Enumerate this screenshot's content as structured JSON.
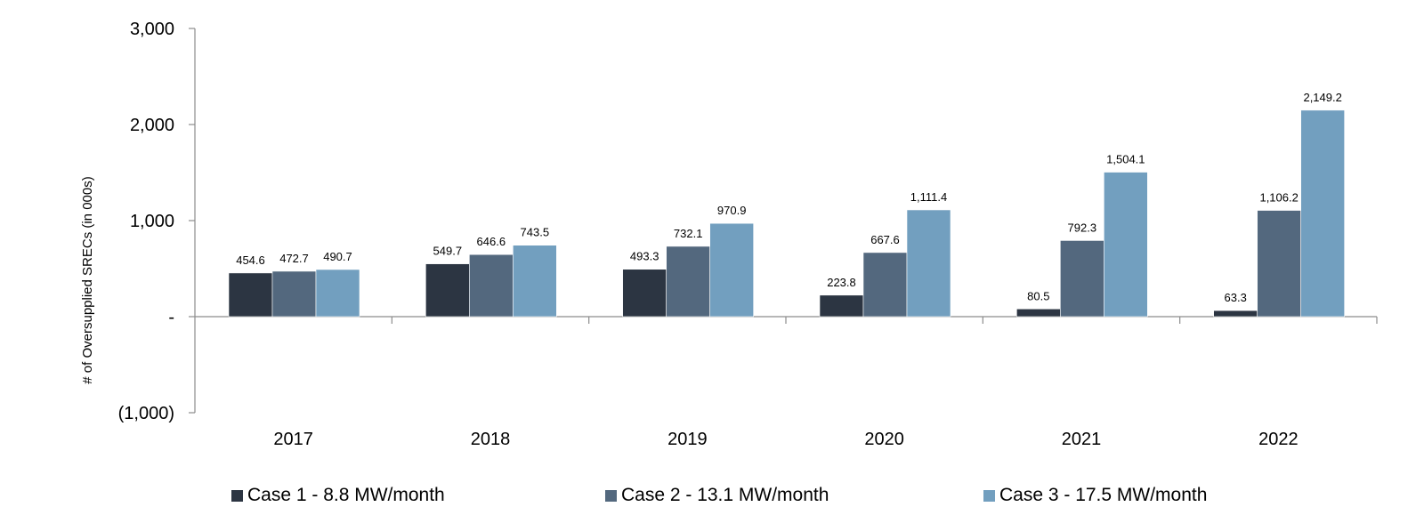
{
  "chart_data": {
    "type": "bar",
    "ylabel": "# of Oversupplied SRECs (in 000s)",
    "ylim": [
      -1000,
      3000
    ],
    "yticks": [
      {
        "value": 3000,
        "label": "3,000"
      },
      {
        "value": 2000,
        "label": "2,000"
      },
      {
        "value": 1000,
        "label": "1,000"
      },
      {
        "value": 0,
        "label": "-"
      },
      {
        "value": -1000,
        "label": "(1,000)"
      }
    ],
    "categories": [
      "2017",
      "2018",
      "2019",
      "2020",
      "2021",
      "2022"
    ],
    "series": [
      {
        "name": "Case 1 - 8.8 MW/month",
        "color": "#2c3542",
        "values": [
          454.6,
          549.7,
          493.3,
          223.8,
          80.5,
          63.3
        ],
        "labels": [
          "454.6",
          "549.7",
          "493.3",
          "223.8",
          "80.5",
          "63.3"
        ]
      },
      {
        "name": "Case 2 - 13.1 MW/month",
        "color": "#53687e",
        "values": [
          472.7,
          646.6,
          732.1,
          667.6,
          792.3,
          1106.2
        ],
        "labels": [
          "472.7",
          "646.6",
          "732.1",
          "667.6",
          "792.3",
          "1,106.2"
        ]
      },
      {
        "name": "Case 3 - 17.5 MW/month",
        "color": "#729fbf",
        "values": [
          490.7,
          743.5,
          970.9,
          1111.4,
          1504.1,
          2149.2
        ],
        "labels": [
          "490.7",
          "743.5",
          "970.9",
          "1,111.4",
          "1,504.1",
          "2,149.2"
        ]
      }
    ],
    "legend_position": "bottom",
    "grid": false
  }
}
